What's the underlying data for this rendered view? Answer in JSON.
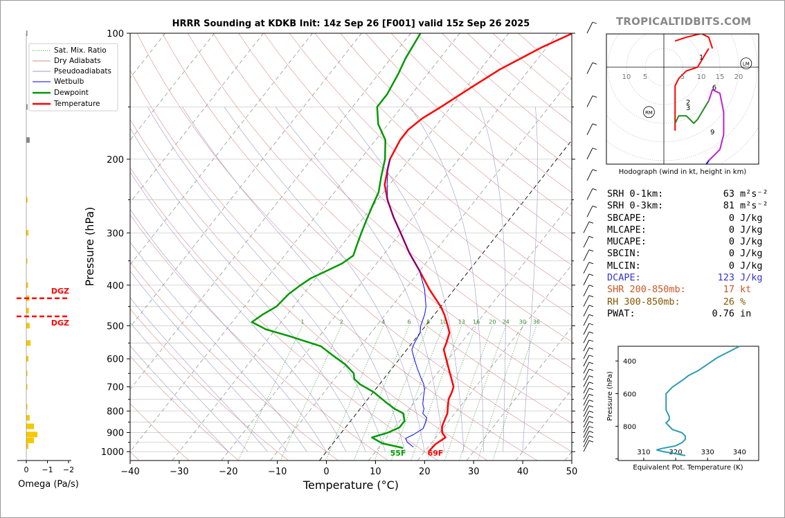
{
  "brand": "TROPICALTIDBITS.COM",
  "chart_data": [
    {
      "type": "line",
      "title": "HRRR Sounding at KDKB Init: 14z Sep 26 [F001] valid 15z Sep 26 2025",
      "xlabel": "Temperature (°C)",
      "ylabel": "Pressure (hPa)",
      "xlim": [
        -40,
        50
      ],
      "ylim": [
        1050,
        100
      ],
      "y_scale": "log",
      "x_ticks": [
        "−40",
        "−30",
        "−20",
        "−10",
        "0",
        "10",
        "20",
        "30",
        "40",
        "50"
      ],
      "y_ticks": [
        "100",
        "200",
        "300",
        "400",
        "500",
        "600",
        "700",
        "800",
        "900",
        "1000"
      ],
      "legend": [
        "Sat. Mix. Ratio",
        "Dry Adiabats",
        "Pseudoadiabats",
        "Wetbulb",
        "Dewpoint",
        "Temperature"
      ],
      "legend_position": "upper-left",
      "mixing_ratio_labels": [
        "1",
        "2",
        "4",
        "6",
        "8",
        "10",
        "13",
        "16",
        "20",
        "24",
        "30",
        "36"
      ],
      "surface_dewpoint_label": "55F",
      "surface_temperature_label": "69F",
      "series": [
        {
          "name": "Temperature",
          "color": "#ff0000",
          "points": [
            [
              20.8,
              1000
            ],
            [
              21,
              960
            ],
            [
              22,
              925
            ],
            [
              20.5,
              900
            ],
            [
              19.5,
              870
            ],
            [
              19,
              840
            ],
            [
              18.5,
              810
            ],
            [
              17.5,
              780
            ],
            [
              16.5,
              750
            ],
            [
              16,
              720
            ],
            [
              15.5,
              700
            ],
            [
              13.8,
              670
            ],
            [
              12,
              640
            ],
            [
              9.5,
              600
            ],
            [
              7.5,
              570
            ],
            [
              7,
              550
            ],
            [
              6,
              520
            ],
            [
              4.5,
              500
            ],
            [
              2,
              470
            ],
            [
              0,
              450
            ],
            [
              -5,
              410
            ],
            [
              -10,
              370
            ],
            [
              -15,
              335
            ],
            [
              -20,
              300
            ],
            [
              -24,
              275
            ],
            [
              -28,
              250
            ],
            [
              -31,
              230
            ],
            [
              -33,
              210
            ],
            [
              -34,
              200
            ],
            [
              -35,
              180
            ],
            [
              -35,
              170
            ],
            [
              -34,
              160
            ],
            [
              -32,
              150
            ],
            [
              -29,
              135
            ],
            [
              -26,
              122
            ],
            [
              -21,
              108
            ],
            [
              -17,
              100
            ]
          ]
        },
        {
          "name": "Dewpoint",
          "color": "#009900",
          "points": [
            [
              15,
              980
            ],
            [
              10,
              955
            ],
            [
              7,
              925
            ],
            [
              9.5,
              900
            ],
            [
              11,
              875
            ],
            [
              11,
              845
            ],
            [
              9.5,
              810
            ],
            [
              7,
              790
            ],
            [
              4,
              760
            ],
            [
              0,
              720
            ],
            [
              -4,
              690
            ],
            [
              -6,
              670
            ],
            [
              -7,
              650
            ],
            [
              -10,
              620
            ],
            [
              -14,
              590
            ],
            [
              -18,
              560
            ],
            [
              -26,
              530
            ],
            [
              -32,
              510
            ],
            [
              -36,
              490
            ],
            [
              -35,
              470
            ],
            [
              -33.5,
              450
            ],
            [
              -33,
              420
            ],
            [
              -32,
              400
            ],
            [
              -31,
              385
            ],
            [
              -29,
              370
            ],
            [
              -27,
              355
            ],
            [
              -26,
              340
            ],
            [
              -27,
              320
            ],
            [
              -28,
              300
            ],
            [
              -29,
              280
            ],
            [
              -30,
              260
            ],
            [
              -31,
              240
            ],
            [
              -33,
              220
            ],
            [
              -35,
              200
            ],
            [
              -38,
              180
            ],
            [
              -42,
              165
            ],
            [
              -45,
              150
            ],
            [
              -45,
              140
            ],
            [
              -46,
              125
            ],
            [
              -47,
              115
            ],
            [
              -48,
              100
            ]
          ]
        },
        {
          "name": "Wetbulb",
          "color": "#0000ff",
          "points": [
            [
              17,
              975
            ],
            [
              15,
              950
            ],
            [
              14,
              930
            ],
            [
              15,
              910
            ],
            [
              16,
              880
            ],
            [
              15.5,
              850
            ],
            [
              15,
              830
            ],
            [
              13.5,
              810
            ],
            [
              13,
              790
            ],
            [
              12,
              770
            ],
            [
              11,
              740
            ],
            [
              10,
              710
            ],
            [
              9,
              690
            ],
            [
              7,
              660
            ],
            [
              5,
              630
            ],
            [
              3,
              600
            ],
            [
              1,
              570
            ],
            [
              0.5,
              550
            ],
            [
              0,
              520
            ],
            [
              -1,
              500
            ],
            [
              -2,
              470
            ],
            [
              -3,
              450
            ],
            [
              -6,
              410
            ],
            [
              -10,
              370
            ],
            [
              -15,
              335
            ],
            [
              -20,
              300
            ],
            [
              -24,
              275
            ],
            [
              -28,
              250
            ],
            [
              -30.5,
              230
            ],
            [
              -33,
              210
            ],
            [
              -34,
              200
            ]
          ]
        }
      ]
    },
    {
      "type": "bar",
      "xlabel": "Omega (Pa/s)",
      "x_ticks": [
        "0",
        "−1",
        "−2"
      ],
      "xlim": [
        0.3,
        -2
      ],
      "annotations": [
        "DGZ",
        "DGZ"
      ],
      "dgz_bounds_hpa": [
        430,
        475
      ],
      "values_hpa": [
        [
          100,
          -0.02
        ],
        [
          150,
          -0.03
        ],
        [
          180,
          -0.08
        ],
        [
          250,
          -0.03
        ],
        [
          300,
          -0.05
        ],
        [
          350,
          -0.02
        ],
        [
          400,
          -0.04
        ],
        [
          430,
          -0.07
        ],
        [
          460,
          -0.06
        ],
        [
          500,
          -0.08
        ],
        [
          550,
          -0.1
        ],
        [
          600,
          -0.05
        ],
        [
          650,
          -0.02
        ],
        [
          700,
          -0.01
        ],
        [
          780,
          -0.02
        ],
        [
          830,
          -0.08
        ],
        [
          870,
          -0.18
        ],
        [
          910,
          -0.26
        ],
        [
          940,
          -0.18
        ],
        [
          970,
          -0.05
        ]
      ]
    },
    {
      "type": "line",
      "title": "Hodograph (wind in kt, height in km)",
      "ring_labels": [
        "10",
        "5",
        "5",
        "10",
        "15",
        "20"
      ],
      "storm_motion_labels": [
        "RM",
        "LM"
      ],
      "height_labels": [
        "1",
        "2",
        "3",
        "6",
        "9"
      ],
      "segments": [
        {
          "color": "#ff0000",
          "points": [
            [
              12,
              5
            ],
            [
              9,
              0
            ],
            [
              6,
              -1
            ],
            [
              4,
              -3
            ],
            [
              3,
              -5
            ],
            [
              3,
              -12
            ],
            [
              3,
              -17
            ]
          ]
        },
        {
          "color": "#ff0000",
          "points": [
            [
              3,
              7
            ],
            [
              6,
              8
            ],
            [
              10,
              9
            ],
            [
              12,
              8
            ],
            [
              13,
              5
            ]
          ]
        },
        {
          "color": "#228822",
          "points": [
            [
              3,
              -15
            ],
            [
              4,
              -13
            ],
            [
              6,
              -13
            ],
            [
              8,
              -15
            ],
            [
              9,
              -14
            ],
            [
              12,
              -9
            ]
          ]
        },
        {
          "color": "#bb22cc",
          "points": [
            [
              12,
              -9
            ],
            [
              13,
              -6
            ],
            [
              15,
              -7
            ],
            [
              16,
              -12
            ],
            [
              16,
              -18
            ],
            [
              15,
              -22
            ],
            [
              12,
              -25
            ]
          ]
        },
        {
          "color": "#0000ff",
          "points": [
            [
              12,
              -25
            ],
            [
              8,
              -31
            ],
            [
              5,
              -36
            ],
            [
              3,
              -35
            ],
            [
              3,
              -28
            ],
            [
              4,
              -26
            ]
          ]
        }
      ]
    },
    {
      "type": "line",
      "xlabel": "Equivalent Pot. Temperature (K)",
      "ylabel": "Pressure (hPa)",
      "x_ticks": [
        "310",
        "320",
        "330",
        "340"
      ],
      "y_ticks": [
        "400",
        "600",
        "800"
      ],
      "xlim": [
        302,
        346
      ],
      "ylim": [
        1010,
        310
      ],
      "series": [
        {
          "name": "Theta-e",
          "color": "#2b9cb0",
          "points": [
            [
              323,
              980
            ],
            [
              320,
              968
            ],
            [
              316,
              955
            ],
            [
              314,
              945
            ],
            [
              316,
              935
            ],
            [
              320,
              920
            ],
            [
              322,
              900
            ],
            [
              323,
              880
            ],
            [
              323,
              860
            ],
            [
              322,
              840
            ],
            [
              319,
              820
            ],
            [
              318,
              800
            ],
            [
              317,
              780
            ],
            [
              318,
              760
            ],
            [
              318,
              740
            ],
            [
              317,
              700
            ],
            [
              317,
              640
            ],
            [
              317,
              600
            ],
            [
              319,
              560
            ],
            [
              322,
              520
            ],
            [
              324,
              490
            ],
            [
              327,
              460
            ],
            [
              330,
              420
            ],
            [
              333,
              380
            ],
            [
              337,
              340
            ],
            [
              340,
              310
            ]
          ]
        }
      ]
    }
  ],
  "stats": [
    {
      "label": "SRH 0-1km:",
      "value": "63",
      "unit": "m²s⁻²",
      "color": "#000000"
    },
    {
      "label": "SRH 0-3km:",
      "value": "81",
      "unit": "m²s⁻²",
      "color": "#000000"
    },
    {
      "label": "SBCAPE:",
      "value": "0",
      "unit": "J/kg",
      "color": "#000000"
    },
    {
      "label": "MLCAPE:",
      "value": "0",
      "unit": "J/kg",
      "color": "#000000"
    },
    {
      "label": "MUCAPE:",
      "value": "0",
      "unit": "J/kg",
      "color": "#000000"
    },
    {
      "label": "SBCIN:",
      "value": "0",
      "unit": "J/kg",
      "color": "#000000"
    },
    {
      "label": "MLCIN:",
      "value": "0",
      "unit": "J/kg",
      "color": "#000000"
    },
    {
      "label": "DCAPE:",
      "value": "123",
      "unit": "J/kg",
      "color": "#3333cc"
    },
    {
      "label": "SHR 200-850mb:",
      "value": "17",
      "unit": "kt",
      "color": "#cc5522"
    },
    {
      "label": "RH 300-850mb:",
      "value": "26",
      "unit": "%",
      "color": "#885500"
    },
    {
      "label": "PWAT:",
      "value": "0.76",
      "unit": "in",
      "color": "#000000"
    }
  ]
}
